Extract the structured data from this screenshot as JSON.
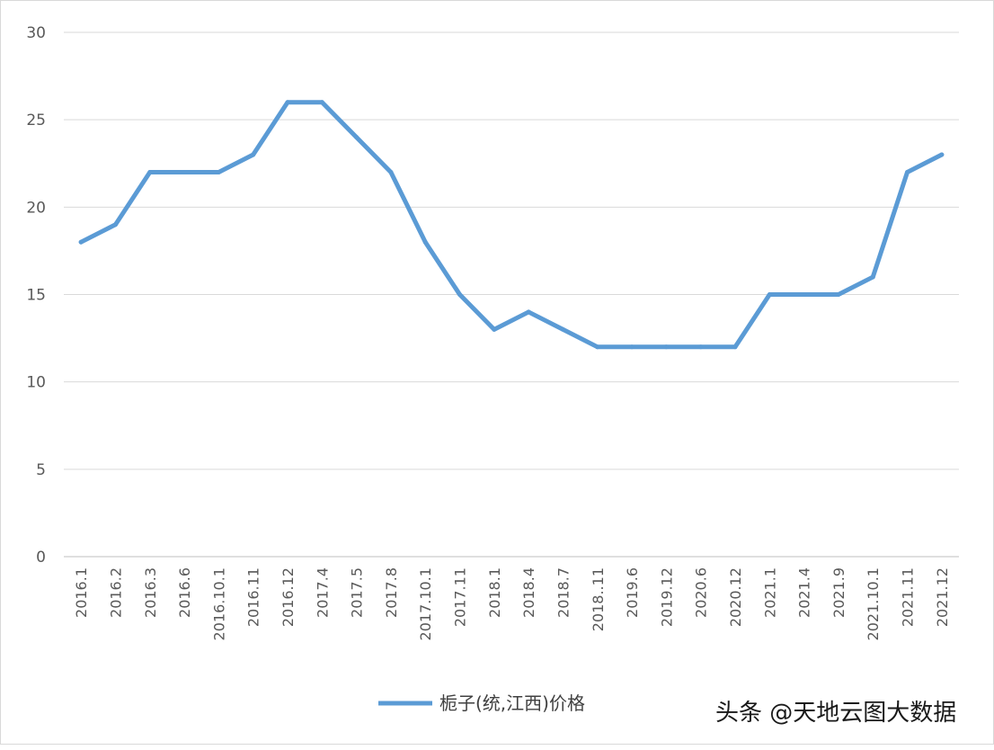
{
  "chart_data": {
    "type": "line",
    "categories": [
      "2016.1",
      "2016.2",
      "2016.3",
      "2016.6",
      "2016.10.1",
      "2016.11",
      "2016.12",
      "2017.4",
      "2017.5",
      "2017.8",
      "2017.10.1",
      "2017.11",
      "2018.1",
      "2018.4",
      "2018.7",
      "2018..11",
      "2019.6",
      "2019.12",
      "2020.6",
      "2020.12",
      "2021.1",
      "2021.4",
      "2021.9",
      "2021.10.1",
      "2021.11",
      "2021.12"
    ],
    "series": [
      {
        "name": "栀子(统,江西)价格",
        "color": "#5b9bd5",
        "values": [
          18,
          19,
          22,
          22,
          22,
          23,
          26,
          26,
          24,
          22,
          18,
          15,
          13,
          14,
          13,
          12,
          12,
          12,
          12,
          12,
          15,
          15,
          15,
          16,
          22,
          23
        ]
      }
    ],
    "yticks": [
      "0",
      "5",
      "10",
      "15",
      "20",
      "25",
      "30"
    ],
    "ylim": [
      0,
      30
    ],
    "grid": true,
    "legend_position": "bottom"
  },
  "watermark": "头条 @天地云图大数据"
}
